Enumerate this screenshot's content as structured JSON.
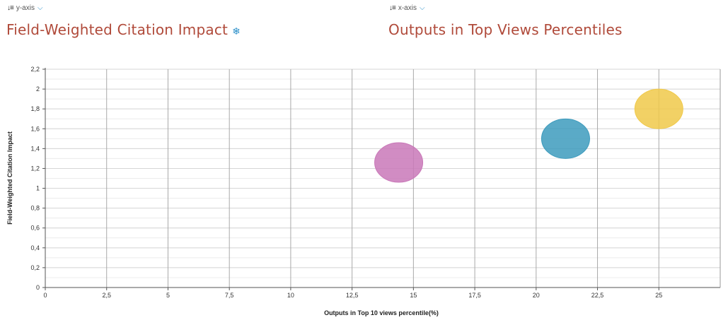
{
  "y_control": {
    "label": "y-axis",
    "metric": "Field-Weighted Citation Impact"
  },
  "x_control": {
    "label": "x-axis",
    "metric": "Outputs in Top Views Percentiles"
  },
  "icons": {
    "sort": "sort-icon",
    "chevron": "chevron-down-icon",
    "settings": "snowflake-icon"
  },
  "chart_data": {
    "type": "scatter",
    "title": "",
    "xlabel": "Outputs in Top 10 views percentile(%)",
    "ylabel": "Field-Weighted Citation Impact",
    "xlim": [
      0,
      27.5
    ],
    "ylim": [
      0,
      2.2
    ],
    "x_ticks": [
      "0",
      "2,5",
      "5",
      "7,5",
      "10",
      "12,5",
      "15",
      "17,5",
      "20",
      "22,5",
      "25"
    ],
    "y_ticks": [
      "0",
      "0,2",
      "0,4",
      "0,6",
      "0,8",
      "1",
      "1,2",
      "1,4",
      "1,6",
      "1,8",
      "2",
      "2,2"
    ],
    "grid": true,
    "points": [
      {
        "x": 14.4,
        "y": 1.26,
        "color": "#c978b8"
      },
      {
        "x": 21.2,
        "y": 1.5,
        "color": "#3d9bbd"
      },
      {
        "x": 25.0,
        "y": 1.8,
        "color": "#f0c94a"
      }
    ]
  }
}
